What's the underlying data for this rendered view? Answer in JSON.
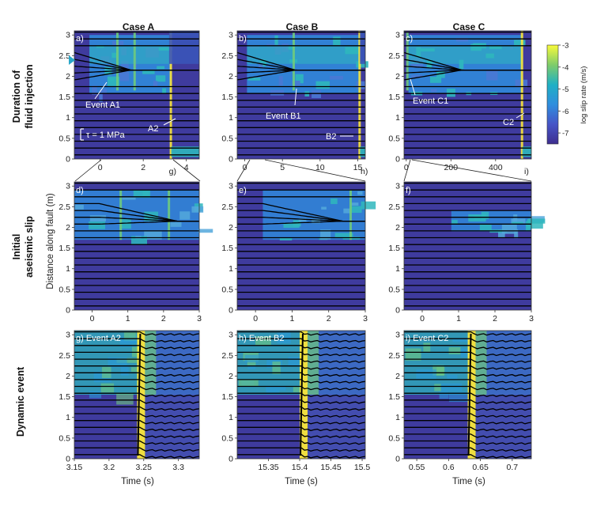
{
  "figure": {
    "column_titles": [
      "Case A",
      "Case B",
      "Case C"
    ],
    "row_titles": [
      [
        "Duration of",
        "fluid injection"
      ],
      [
        "Initial",
        "aseismic slip"
      ],
      [
        "Dynamic event"
      ]
    ],
    "ylabel": "Distance along fault (m)",
    "xlabel": "Time (s)",
    "colorbar": {
      "label": "log slip rate (m/s)",
      "ticks": [
        "-3",
        "-4",
        "-5",
        "-6",
        "-7"
      ],
      "range": [
        -7.5,
        -3
      ]
    },
    "stress_scale_label": "τ = 1 MPa",
    "colors": {
      "background": "#3f3b9e",
      "low": "#413c9f",
      "mid": "#2f8ede",
      "cyan": "#2fb7bd",
      "green": "#6fca7d",
      "yellow": "#f9e63a",
      "trace": "#000000",
      "text_on_plot": "#ffffff"
    }
  },
  "chart_data": [
    {
      "id": "a",
      "panel_label": "a)",
      "type": "heatmap",
      "x_range": [
        -1.2,
        4.6
      ],
      "y_range": [
        0,
        3.1
      ],
      "x_ticks": [
        "0",
        "2",
        "4"
      ],
      "y_ticks": [
        "0",
        "0.5",
        "1",
        "1.5",
        "2",
        "2.5",
        "3"
      ],
      "annotations": [
        {
          "text": "Event A1",
          "x": 0.8
        },
        {
          "text": "A2",
          "x": 3.25
        }
      ],
      "zoom_label": "g)"
    },
    {
      "id": "b",
      "panel_label": "b)",
      "type": "heatmap",
      "x_range": [
        -1,
        16
      ],
      "y_range": [
        0,
        3.1
      ],
      "x_ticks": [
        "0",
        "5",
        "10",
        "15"
      ],
      "y_ticks": [
        "0",
        "0.5",
        "1",
        "1.5",
        "2",
        "2.5",
        "3"
      ],
      "annotations": [
        {
          "text": "Event B1",
          "x": 6.5
        },
        {
          "text": "B2",
          "x": 15.4
        }
      ],
      "zoom_label": "h)"
    },
    {
      "id": "c",
      "panel_label": "c)",
      "type": "heatmap",
      "x_range": [
        -10,
        560
      ],
      "y_range": [
        0,
        3.1
      ],
      "x_ticks": [
        "0",
        "200",
        "400"
      ],
      "y_ticks": [
        "0",
        "0.5",
        "1",
        "1.5",
        "2",
        "2.5",
        "3"
      ],
      "annotations": [
        {
          "text": "Event C1",
          "x": 5
        },
        {
          "text": "C2",
          "x": 520
        }
      ],
      "zoom_label": "i)"
    },
    {
      "id": "d",
      "panel_label": "d)",
      "type": "heatmap",
      "x_range": [
        -0.5,
        3
      ],
      "y_range": [
        0,
        3.1
      ],
      "x_ticks": [
        "0",
        "1",
        "2",
        "3"
      ],
      "y_ticks": [
        "0",
        "0.5",
        "1",
        "1.5",
        "2",
        "2.5",
        "3"
      ]
    },
    {
      "id": "e",
      "panel_label": "e)",
      "type": "heatmap",
      "x_range": [
        -0.5,
        3
      ],
      "y_range": [
        0,
        3.1
      ],
      "x_ticks": [
        "0",
        "1",
        "2",
        "3"
      ],
      "y_ticks": [
        "0",
        "0.5",
        "1",
        "1.5",
        "2",
        "2.5",
        "3"
      ]
    },
    {
      "id": "f",
      "panel_label": "f)",
      "type": "heatmap",
      "x_range": [
        -0.5,
        3
      ],
      "y_range": [
        0,
        3.1
      ],
      "x_ticks": [
        "0",
        "1",
        "2",
        "3"
      ],
      "y_ticks": [
        "0",
        "0.5",
        "1",
        "1.5",
        "2",
        "2.5",
        "3"
      ]
    },
    {
      "id": "g",
      "panel_label": "g) Event A2",
      "type": "heatmap",
      "x_range": [
        3.15,
        3.33
      ],
      "y_range": [
        0,
        3.1
      ],
      "x_ticks": [
        "3.15",
        "3.2",
        "3.25",
        "3.3"
      ],
      "y_ticks": [
        "0",
        "0.5",
        "1",
        "1.5",
        "2",
        "2.5",
        "3"
      ],
      "event_time": 3.245
    },
    {
      "id": "h",
      "panel_label": "h) Event B2",
      "type": "heatmap",
      "x_range": [
        15.3,
        15.505
      ],
      "y_range": [
        0,
        3.1
      ],
      "x_ticks": [
        "15.35",
        "15.4",
        "15.45",
        "15.5"
      ],
      "y_ticks": [
        "0",
        "0.5",
        "1",
        "1.5",
        "2",
        "2.5",
        "3"
      ],
      "event_time": 15.405
    },
    {
      "id": "i",
      "panel_label": "i) Event C2",
      "type": "heatmap",
      "x_range": [
        0.53,
        0.73
      ],
      "y_range": [
        0,
        3.1
      ],
      "x_ticks": [
        "0.55",
        "0.6",
        "0.65",
        "0.7"
      ],
      "y_ticks": [
        "0",
        "0.5",
        "1",
        "1.5",
        "2",
        "2.5",
        "3"
      ],
      "event_time": 0.635
    }
  ]
}
